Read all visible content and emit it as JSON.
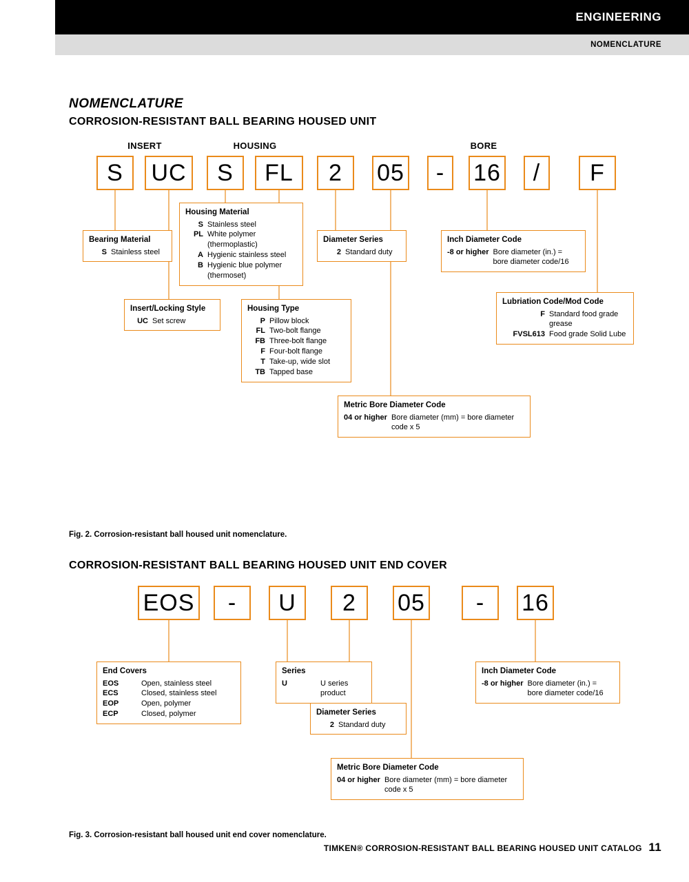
{
  "colors": {
    "accent": "#ea8a1a",
    "black": "#000000",
    "grey": "#dcdcdc",
    "white": "#ffffff"
  },
  "header": {
    "section": "ENGINEERING",
    "subsection": "NOMENCLATURE"
  },
  "title_main": "NOMENCLATURE",
  "title_sub": "CORROSION-RESISTANT BALL BEARING HOUSED UNIT",
  "title_sub2": "CORROSION-RESISTANT BALL BEARING HOUSED UNIT END COVER",
  "fig1": {
    "group_labels": {
      "insert": "INSERT",
      "housing": "HOUSING",
      "bore": "BORE"
    },
    "codes": [
      "S",
      "UC",
      "S",
      "FL",
      "2",
      "05",
      "-",
      "16",
      "/",
      "F"
    ],
    "defs": {
      "bearing_material": {
        "title": "Bearing Material",
        "rows": [
          {
            "code": "S",
            "desc": "Stainless steel"
          }
        ]
      },
      "insert_locking": {
        "title": "Insert/Locking Style",
        "rows": [
          {
            "code": "UC",
            "desc": "Set screw"
          }
        ]
      },
      "housing_material": {
        "title": "Housing Material",
        "rows": [
          {
            "code": "S",
            "desc": "Stainless steel"
          },
          {
            "code": "PL",
            "desc": "White polymer (thermoplastic)"
          },
          {
            "code": "A",
            "desc": "Hygienic stainless steel"
          },
          {
            "code": "B",
            "desc": "Hygienic blue polymer (thermoset)"
          }
        ]
      },
      "housing_type": {
        "title": "Housing Type",
        "rows": [
          {
            "code": "P",
            "desc": "Pillow block"
          },
          {
            "code": "FL",
            "desc": "Two-bolt flange"
          },
          {
            "code": "FB",
            "desc": "Three-bolt flange"
          },
          {
            "code": "F",
            "desc": "Four-bolt flange"
          },
          {
            "code": "T",
            "desc": "Take-up, wide slot"
          },
          {
            "code": "TB",
            "desc": "Tapped base"
          }
        ]
      },
      "diameter_series": {
        "title": "Diameter Series",
        "rows": [
          {
            "code": "2",
            "desc": "Standard duty"
          }
        ]
      },
      "metric_bore": {
        "title": "Metric Bore Diameter Code",
        "rows": [
          {
            "code": "04 or higher",
            "desc": "Bore diameter (mm) = bore diameter code x 5"
          }
        ]
      },
      "inch_diameter": {
        "title": "Inch Diameter Code",
        "rows": [
          {
            "code": "-8 or higher",
            "desc": "Bore diameter (in.) = bore diameter code/16"
          }
        ]
      },
      "lube_code": {
        "title": "Lubriation Code/Mod Code",
        "rows": [
          {
            "code": "F",
            "desc": "Standard food grade grease"
          },
          {
            "code": "FVSL613",
            "desc": "Food grade Solid Lube"
          }
        ]
      }
    },
    "caption": "Fig. 2. Corrosion-resistant ball housed unit nomenclature."
  },
  "fig2": {
    "codes": [
      "EOS",
      "-",
      "U",
      "2",
      "05",
      "-",
      "16"
    ],
    "defs": {
      "end_covers": {
        "title": "End Covers",
        "rows": [
          {
            "code": "EOS",
            "desc": "Open, stainless steel"
          },
          {
            "code": "ECS",
            "desc": "Closed, stainless steel"
          },
          {
            "code": "EOP",
            "desc": "Open, polymer"
          },
          {
            "code": "ECP",
            "desc": "Closed, polymer"
          }
        ]
      },
      "series": {
        "title": "Series",
        "rows": [
          {
            "code": "U",
            "desc": "U series product"
          }
        ]
      },
      "diameter_series": {
        "title": "Diameter Series",
        "rows": [
          {
            "code": "2",
            "desc": "Standard duty"
          }
        ]
      },
      "metric_bore": {
        "title": "Metric Bore Diameter Code",
        "rows": [
          {
            "code": "04 or higher",
            "desc": "Bore diameter (mm) = bore diameter code x 5"
          }
        ]
      },
      "inch_diameter": {
        "title": "Inch Diameter Code",
        "rows": [
          {
            "code": "-8 or higher",
            "desc": "Bore diameter (in.) = bore diameter code/16"
          }
        ]
      }
    },
    "caption": "Fig. 3. Corrosion-resistant ball housed unit end cover nomenclature."
  },
  "footer": {
    "text": "TIMKEN® CORROSION-RESISTANT BALL BEARING HOUSED UNIT CATALOG",
    "page": "11"
  },
  "layout": {
    "fig1_boxes_x": [
      40,
      110,
      200,
      270,
      360,
      440,
      520,
      580,
      660,
      740
    ],
    "fig1_boxes_w": [
      54,
      70,
      54,
      70,
      54,
      54,
      38,
      54,
      38,
      54
    ],
    "fig2_boxes_x": [
      100,
      210,
      290,
      380,
      470,
      570,
      650
    ],
    "fig2_boxes_w": [
      90,
      54,
      54,
      54,
      54,
      54,
      54
    ]
  }
}
